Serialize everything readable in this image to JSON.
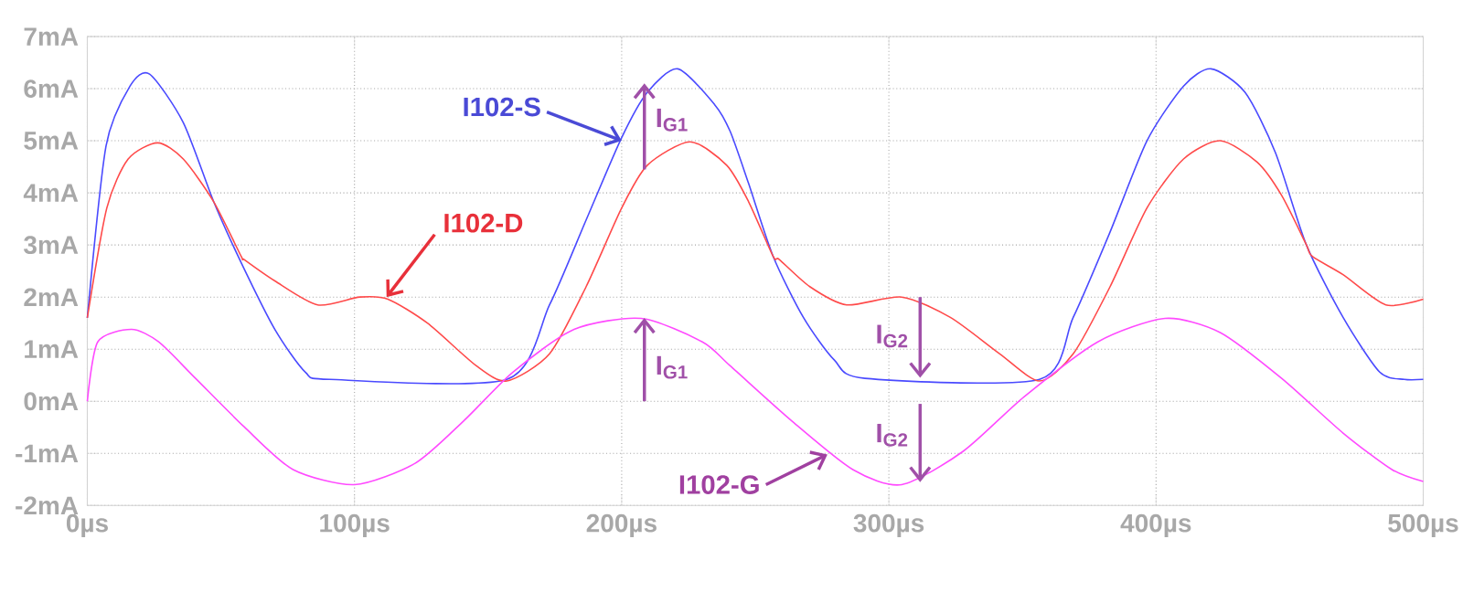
{
  "chart_data": {
    "type": "line",
    "grid": true,
    "legend": false,
    "marker": "none",
    "line_style": "solid",
    "xlim": [
      0,
      500
    ],
    "ylim": [
      -2,
      7
    ],
    "xticks": [
      {
        "value": 0,
        "label": "0µs"
      },
      {
        "value": 100,
        "label": "100µs"
      },
      {
        "value": 200,
        "label": "200µs"
      },
      {
        "value": 300,
        "label": "300µs"
      },
      {
        "value": 400,
        "label": "400µs"
      },
      {
        "value": 500,
        "label": "500µs"
      }
    ],
    "yticks": [
      {
        "value": -2,
        "label": "-2mA"
      },
      {
        "value": -1,
        "label": "-1mA"
      },
      {
        "value": 0,
        "label": "0mA"
      },
      {
        "value": 1,
        "label": "1mA"
      },
      {
        "value": 2,
        "label": "2mA"
      },
      {
        "value": 3,
        "label": "3mA"
      },
      {
        "value": 4,
        "label": "4mA"
      },
      {
        "value": 5,
        "label": "5mA"
      },
      {
        "value": 6,
        "label": "6mA"
      },
      {
        "value": 7,
        "label": "7mA"
      }
    ],
    "series": [
      {
        "color": "#4a4aff",
        "x": [
          0,
          7,
          16,
          23.3,
          35.9,
          47.3,
          57.6,
          70.2,
          81.6,
          90.7,
          157,
          173,
          186.7,
          200,
          209.6,
          221,
          234.7,
          240.6,
          247.5,
          256.7,
          268,
          279.6,
          291,
          356.4,
          369,
          382.8,
          396.6,
          410.3,
          420.6,
          433.3,
          444.7,
          456.2,
          470,
          483.7,
          492.9,
          500
        ],
        "values": [
          1.6,
          4.9,
          6.05,
          6.28,
          5.35,
          3.83,
          2.66,
          1.38,
          0.56,
          0.42,
          0.42,
          1.85,
          3.48,
          5.06,
          5.93,
          6.38,
          5.7,
          5.18,
          4.18,
          2.78,
          1.61,
          0.79,
          0.44,
          0.42,
          1.61,
          3.25,
          5.0,
          6.05,
          6.38,
          5.93,
          4.77,
          3.01,
          1.61,
          0.56,
          0.42,
          0.42
        ]
      },
      {
        "color": "#ff4a4a",
        "x": [
          0,
          7.3,
          15.3,
          26.3,
          35.9,
          47.3,
          57.6,
          58.7,
          70.2,
          86.2,
          102,
          112.5,
          127.3,
          145.6,
          157,
          173,
          186.7,
          200,
          209.6,
          225.6,
          239.3,
          247.5,
          256.7,
          259,
          270.4,
          284.2,
          304.8,
          323,
          341.5,
          356.4,
          369,
          382.8,
          396.6,
          410.3,
          424,
          437.8,
          447,
          456.2,
          458.5,
          470,
          486,
          500
        ],
        "values": [
          1.6,
          3.71,
          4.65,
          4.96,
          4.65,
          3.83,
          2.78,
          2.72,
          2.31,
          1.85,
          2.0,
          1.96,
          1.5,
          0.68,
          0.39,
          0.91,
          2.2,
          3.71,
          4.53,
          4.98,
          4.53,
          3.83,
          2.78,
          2.72,
          2.2,
          1.85,
          2.0,
          1.61,
          0.91,
          0.39,
          0.91,
          2.2,
          3.71,
          4.65,
          5.0,
          4.59,
          3.95,
          3.01,
          2.78,
          2.43,
          1.85,
          1.96
        ]
      },
      {
        "color": "#ff4aff",
        "x": [
          0,
          3.9,
          16.5,
          26.7,
          40.5,
          58.7,
          77,
          100,
          122.7,
          141,
          159.3,
          182.2,
          207.3,
          230.2,
          240.6,
          263.5,
          286.5,
          304.8,
          327.8,
          350.7,
          378.2,
          403.4,
          424,
          447,
          470,
          488.3,
          500
        ],
        "values": [
          0,
          1.14,
          1.38,
          1.14,
          0.44,
          -0.49,
          -1.31,
          -1.6,
          -1.19,
          -0.37,
          0.56,
          1.38,
          1.59,
          1.14,
          0.68,
          -0.37,
          -1.31,
          -1.6,
          -0.96,
          0.09,
          1.14,
          1.59,
          1.32,
          0.44,
          -0.61,
          -1.31,
          -1.54
        ]
      }
    ],
    "annotations": [
      {
        "text": "I102-S",
        "x": 200,
        "y": 5.0
      },
      {
        "text": "I102-D",
        "x": 112,
        "y": 2.0
      },
      {
        "text": "I102-G",
        "x": 277,
        "y": -1.02
      },
      {
        "text": "I$_{G1}$",
        "x": 208.5,
        "y": 6.1
      },
      {
        "text": "I$_{G1}$",
        "x": 208.5,
        "y": 1.6
      },
      {
        "text": "I$_{G2}$",
        "x": 311.7,
        "y": 0.45
      },
      {
        "text": "I$_{G2}$",
        "x": 311.7,
        "y": -1.55
      }
    ]
  }
}
